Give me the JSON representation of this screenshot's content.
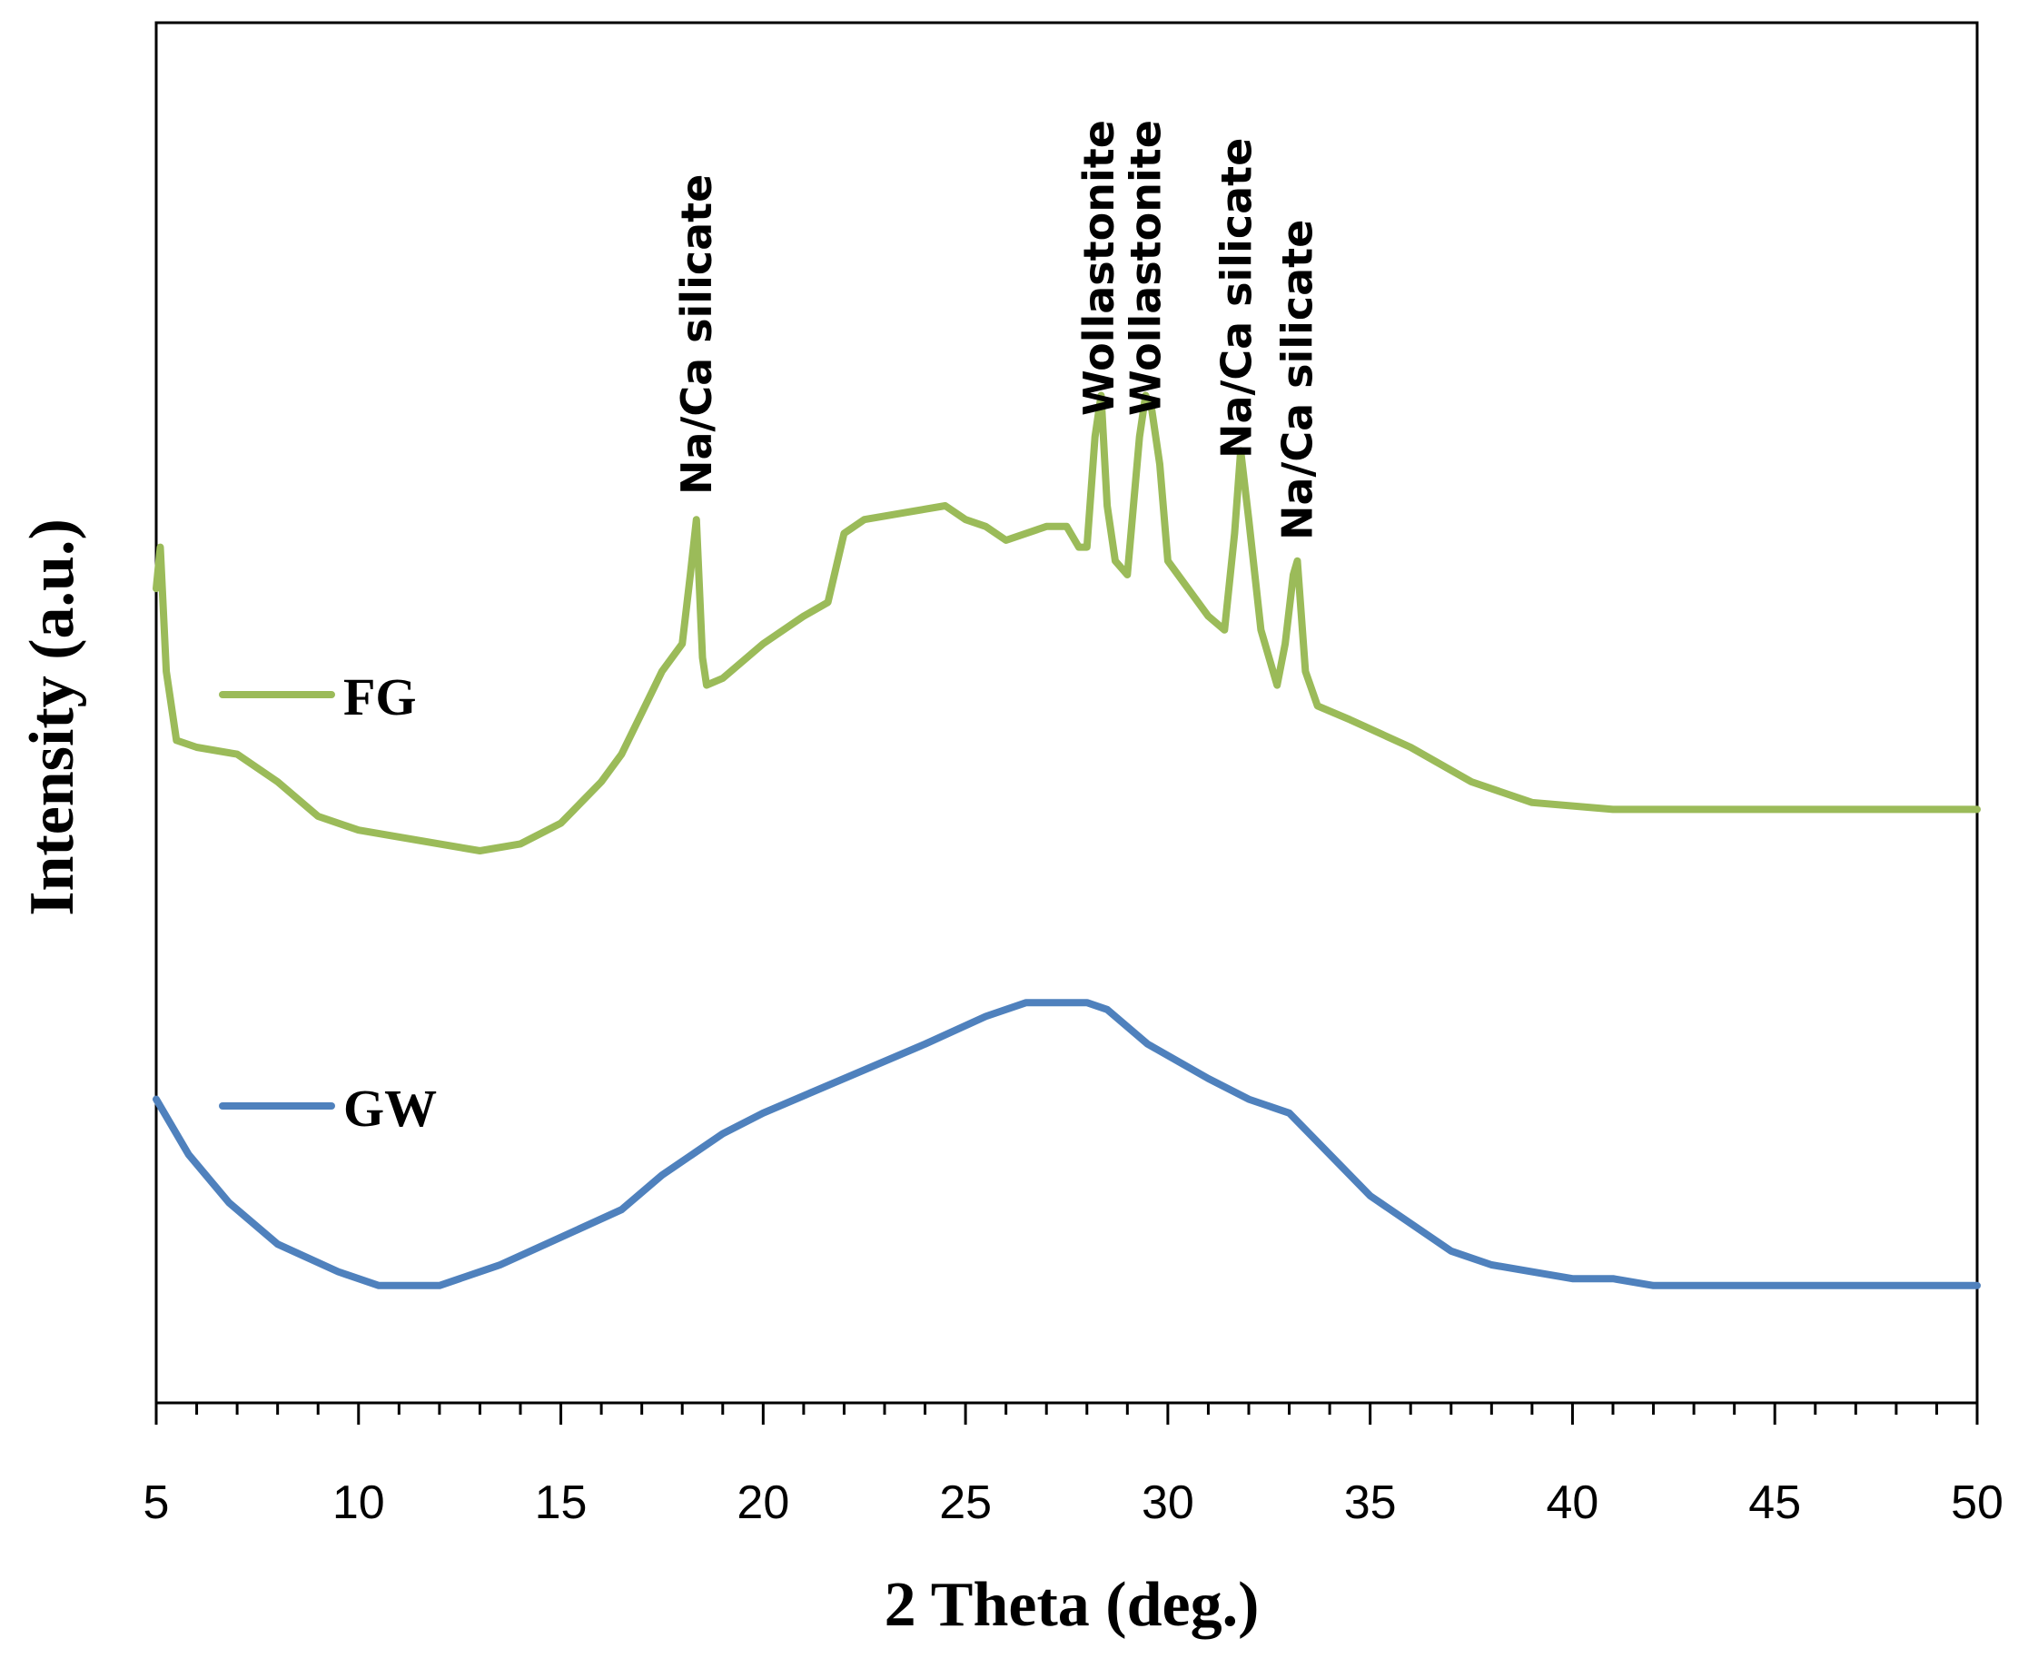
{
  "chart_data": {
    "type": "line",
    "title": "",
    "xlabel": "2 Theta (deg.)",
    "ylabel": "Intensity (a.u.)",
    "xlim": [
      5,
      50
    ],
    "ylim": [
      0,
      100
    ],
    "xticks": [
      5,
      10,
      15,
      20,
      25,
      30,
      35,
      40,
      45,
      50
    ],
    "yticks_shown": false,
    "legend": "left, inline with series",
    "series": [
      {
        "name": "FG",
        "color": "#9bbb59",
        "x": [
          5.0,
          5.1,
          5.25,
          5.5,
          6.0,
          7.0,
          8.0,
          9.0,
          10.0,
          11.0,
          12.0,
          13.0,
          14.0,
          15.0,
          16.0,
          16.5,
          17.0,
          17.5,
          18.0,
          18.2,
          18.35,
          18.5,
          18.6,
          19.0,
          20.0,
          21.0,
          21.6,
          22.0,
          22.5,
          23.5,
          24.5,
          25.0,
          25.5,
          26.0,
          27.0,
          27.5,
          27.8,
          28.0,
          28.2,
          28.35,
          28.5,
          28.7,
          29.0,
          29.3,
          29.45,
          29.6,
          29.8,
          30.0,
          30.5,
          31.0,
          31.4,
          31.65,
          31.8,
          32.0,
          32.3,
          32.7,
          32.9,
          33.1,
          33.2,
          33.4,
          33.7,
          34.5,
          36.0,
          37.5,
          39.0,
          41.0,
          43.0,
          45.0,
          47.0,
          48.5,
          50.0
        ],
        "values": [
          59,
          62,
          53,
          48,
          47.5,
          47,
          45,
          42.5,
          41.5,
          41,
          40.5,
          40,
          40.5,
          42,
          45,
          47,
          50,
          53,
          55,
          60,
          64,
          54,
          52,
          52.5,
          55,
          57,
          58,
          63,
          64,
          64.5,
          65,
          64,
          63.5,
          62.5,
          63.5,
          63.5,
          62,
          62,
          70,
          73,
          65,
          61,
          60,
          70,
          73,
          72,
          68,
          61,
          59,
          57,
          56,
          63,
          69,
          64,
          56,
          52,
          55,
          60,
          61,
          53,
          50.5,
          49.5,
          47.5,
          45,
          43.5,
          43,
          43,
          43,
          43,
          43,
          43
        ]
      },
      {
        "name": "GW",
        "color": "#4f81bd",
        "x": [
          5.0,
          5.8,
          6.8,
          8.0,
          9.5,
          10.5,
          12.0,
          13.5,
          15.0,
          16.5,
          17.5,
          19.0,
          20.0,
          22.0,
          24.0,
          25.5,
          26.5,
          28.0,
          28.5,
          29.5,
          31.0,
          32.0,
          33.0,
          35.0,
          37.0,
          38.0,
          40.0,
          41.0,
          42.0,
          44.0,
          46.0,
          48.0,
          50.0
        ],
        "values": [
          22,
          18,
          14.5,
          11.5,
          9.5,
          8.5,
          8.5,
          10,
          12,
          14,
          16.5,
          19.5,
          21,
          23.5,
          26,
          28,
          29,
          29,
          28.5,
          26,
          23.5,
          22,
          21,
          15,
          11,
          10,
          9,
          9,
          8.5,
          8.5,
          8.5,
          8.5,
          8.5
        ]
      }
    ],
    "annotations": [
      {
        "text": "Na/Ca silicate",
        "x": 18.35
      },
      {
        "text": "Wollastonite",
        "x": 28.3
      },
      {
        "text": "Wollastonite",
        "x": 29.45
      },
      {
        "text": "Na/Ca silicate",
        "x": 31.7
      },
      {
        "text": "Na/Ca silicate",
        "x": 33.2
      }
    ]
  }
}
